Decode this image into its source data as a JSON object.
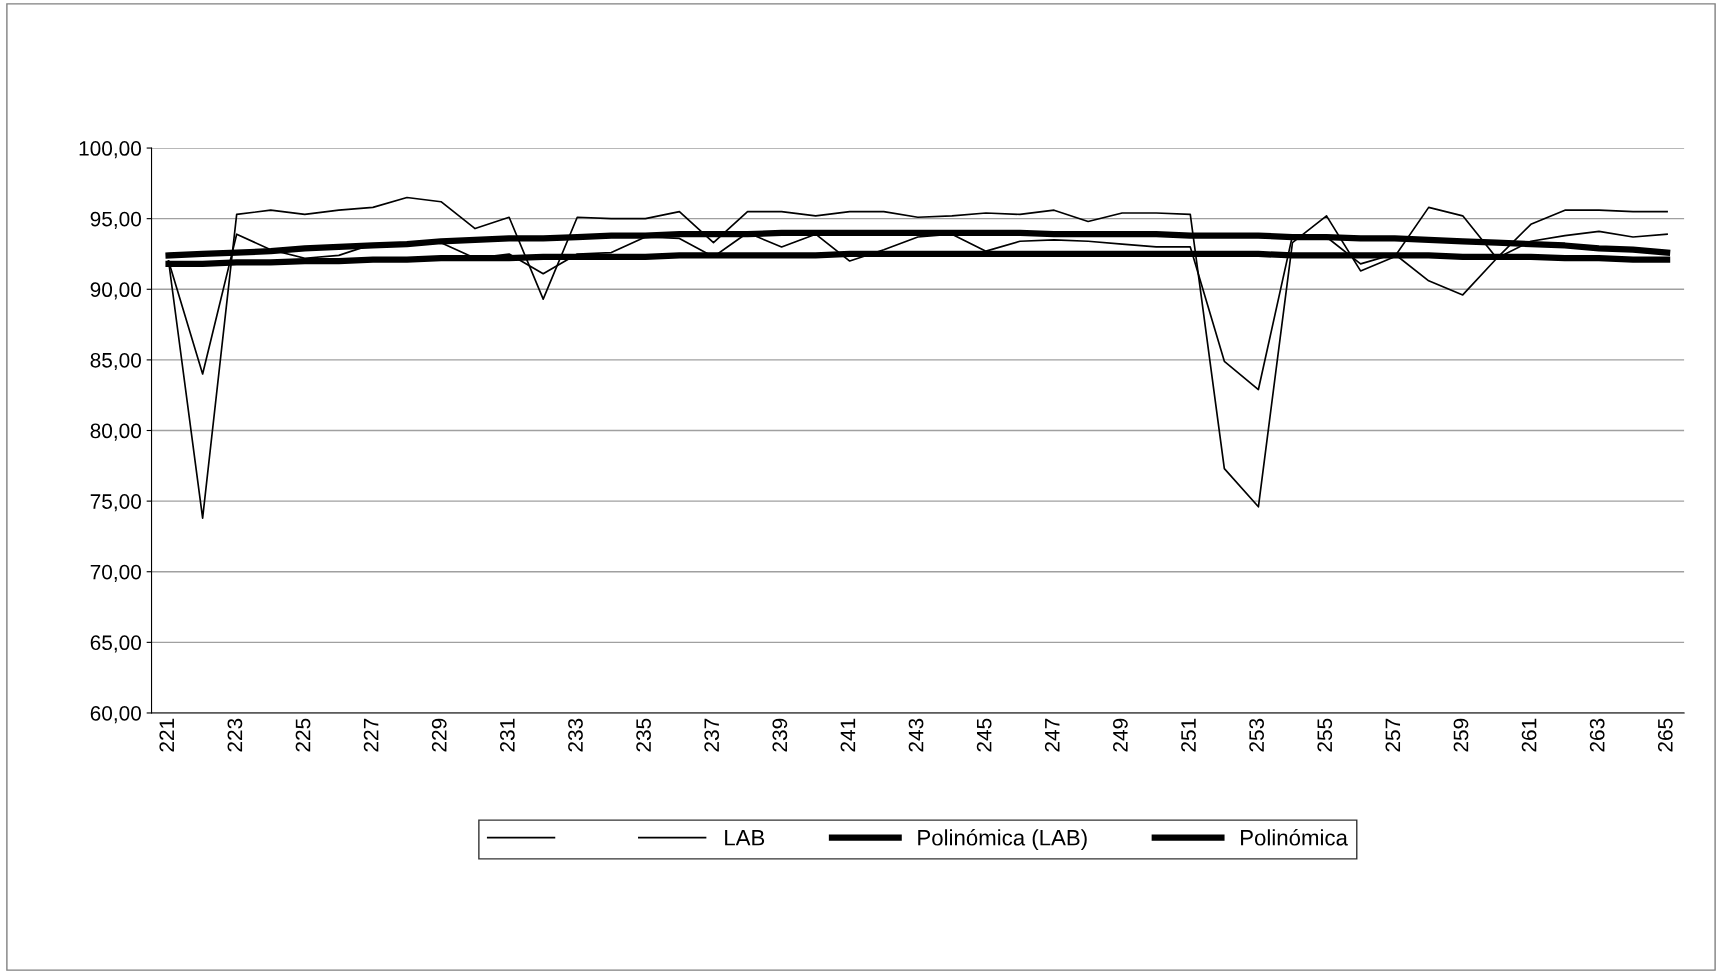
{
  "chart_data": {
    "type": "line",
    "categories": [
      "221",
      null,
      "223",
      null,
      "225",
      null,
      "227",
      null,
      "229",
      null,
      "231",
      null,
      "233",
      null,
      "235",
      null,
      "237",
      null,
      "239",
      null,
      "241",
      null,
      "243",
      null,
      "245",
      null,
      "247",
      null,
      "249",
      null,
      "251",
      null,
      "253",
      null,
      "255",
      null,
      "257",
      null,
      "259",
      null,
      "261",
      null,
      "263",
      null,
      "265"
    ],
    "series": [
      {
        "color": "#000000",
        "values": [
          92.0,
          84.0,
          93.9,
          92.8,
          92.2,
          92.4,
          93.2,
          93.3,
          93.3,
          92.2,
          92.5,
          91.1,
          92.5,
          92.6,
          93.7,
          93.6,
          92.3,
          94.0,
          93.0,
          93.9,
          92.0,
          92.8,
          93.7,
          93.9,
          92.7,
          93.4,
          93.5,
          93.4,
          93.2,
          93.0,
          93.0,
          84.9,
          82.9,
          93.8,
          93.7,
          91.8,
          92.5,
          90.6,
          89.6,
          92.2,
          93.4,
          93.8,
          94.1,
          93.7,
          93.9
        ]
      },
      {
        "name": "LAB",
        "color": "#000000",
        "values": [
          92.0,
          73.8,
          95.3,
          95.6,
          95.3,
          95.6,
          95.8,
          96.5,
          96.2,
          94.3,
          95.1,
          89.3,
          95.1,
          95.0,
          95.0,
          95.5,
          93.3,
          95.5,
          95.5,
          95.2,
          95.5,
          95.5,
          95.1,
          95.2,
          95.4,
          95.3,
          95.6,
          94.8,
          95.4,
          95.4,
          95.3,
          77.3,
          74.6,
          93.3,
          95.2,
          91.3,
          92.3,
          95.8,
          95.2,
          92.2,
          94.6,
          95.6,
          95.6,
          95.5,
          95.5
        ]
      },
      {
        "name": "Polinómica (LAB)",
        "color": "#000000",
        "values": [
          92.4,
          92.5,
          92.6,
          92.7,
          92.9,
          93.0,
          93.1,
          93.2,
          93.4,
          93.5,
          93.6,
          93.6,
          93.7,
          93.8,
          93.8,
          93.9,
          93.9,
          93.9,
          94.0,
          94.0,
          94.0,
          94.0,
          94.0,
          94.0,
          94.0,
          94.0,
          93.9,
          93.9,
          93.9,
          93.9,
          93.8,
          93.8,
          93.8,
          93.7,
          93.7,
          93.6,
          93.6,
          93.5,
          93.4,
          93.3,
          93.2,
          93.1,
          92.9,
          92.8,
          92.6
        ]
      },
      {
        "name": "Polinómica",
        "color": "#000000",
        "values": [
          91.8,
          91.8,
          91.9,
          91.9,
          92.0,
          92.0,
          92.1,
          92.1,
          92.2,
          92.2,
          92.2,
          92.3,
          92.3,
          92.3,
          92.3,
          92.4,
          92.4,
          92.4,
          92.4,
          92.4,
          92.5,
          92.5,
          92.5,
          92.5,
          92.5,
          92.5,
          92.5,
          92.5,
          92.5,
          92.5,
          92.5,
          92.5,
          92.5,
          92.4,
          92.4,
          92.4,
          92.4,
          92.4,
          92.3,
          92.3,
          92.3,
          92.2,
          92.2,
          92.1,
          92.1
        ]
      }
    ],
    "ylim": [
      60,
      100
    ],
    "yticks": [
      {
        "value": 60,
        "label": "60,00"
      },
      {
        "value": 65,
        "label": "65,00"
      },
      {
        "value": 70,
        "label": "70,00"
      },
      {
        "value": 75,
        "label": "75,00"
      },
      {
        "value": 80,
        "label": "80,00"
      },
      {
        "value": 85,
        "label": "85,00"
      },
      {
        "value": 90,
        "label": "90,00"
      },
      {
        "value": 95,
        "label": "95,00"
      },
      {
        "value": 100,
        "label": "100,00"
      }
    ],
    "grid": "y",
    "legend": "bottom",
    "marker": "none",
    "line_style": "solid"
  }
}
